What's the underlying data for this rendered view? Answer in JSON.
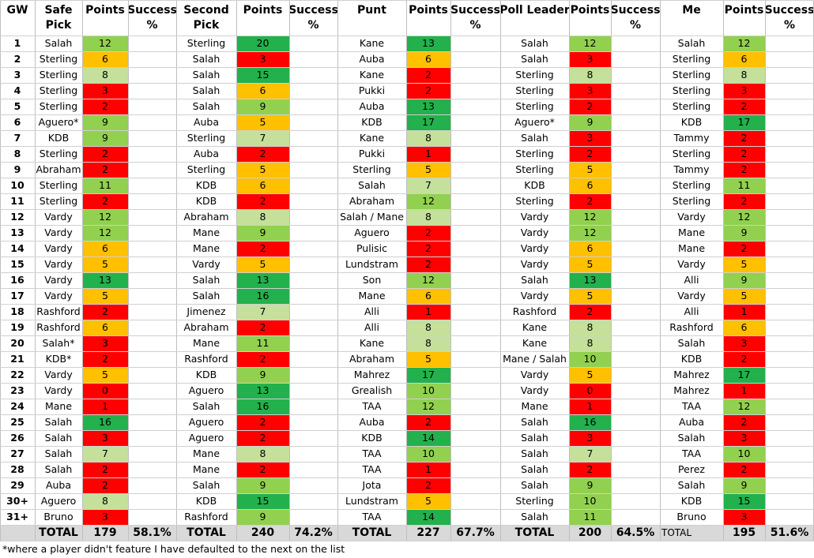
{
  "header": {
    "gw": "GW",
    "safe_pick": [
      "Safe",
      "Pick"
    ],
    "points": "Points",
    "success": [
      "Success",
      "%"
    ],
    "second_pick": [
      "Second",
      "Pick"
    ],
    "punt": "Punt",
    "poll_leader": "Poll Leader",
    "me": "Me"
  },
  "colors": {
    "green": "#22b14c",
    "light_green": "#92d050",
    "pale_green": "#c4e09a",
    "orange": "#ffc000",
    "red": "#ff0000",
    "total_bg": "#d9d9d9"
  },
  "rows": [
    {
      "gw": "1",
      "safe": "Salah",
      "safe_pts": "12",
      "second": "Sterling",
      "second_pts": "20",
      "punt": "Kane",
      "punt_pts": "13",
      "poll": "Salah",
      "poll_pts": "12",
      "me": "Salah",
      "me_pts": "12"
    },
    {
      "gw": "2",
      "safe": "Sterling",
      "safe_pts": "6",
      "second": "Salah",
      "second_pts": "3",
      "punt": "Auba",
      "punt_pts": "6",
      "poll": "Salah",
      "poll_pts": "3",
      "me": "Sterling",
      "me_pts": "6"
    },
    {
      "gw": "3",
      "safe": "Sterling",
      "safe_pts": "8",
      "second": "Salah",
      "second_pts": "15",
      "punt": "Kane",
      "punt_pts": "2",
      "poll": "Sterling",
      "poll_pts": "8",
      "me": "Sterling",
      "me_pts": "8"
    },
    {
      "gw": "4",
      "safe": "Sterling",
      "safe_pts": "3",
      "second": "Salah",
      "second_pts": "6",
      "punt": "Pukki",
      "punt_pts": "2",
      "poll": "Sterling",
      "poll_pts": "3",
      "me": "Sterling",
      "me_pts": "3"
    },
    {
      "gw": "5",
      "safe": "Sterling",
      "safe_pts": "2",
      "second": "Salah",
      "second_pts": "9",
      "punt": "Auba",
      "punt_pts": "13",
      "poll": "Sterling",
      "poll_pts": "2",
      "me": "Sterling",
      "me_pts": "2"
    },
    {
      "gw": "6",
      "safe": "Aguero*",
      "safe_pts": "9",
      "second": "Auba",
      "second_pts": "5",
      "punt": "KDB",
      "punt_pts": "17",
      "poll": "Aguero*",
      "poll_pts": "9",
      "me": "KDB",
      "me_pts": "17"
    },
    {
      "gw": "7",
      "safe": "KDB",
      "safe_pts": "9",
      "second": "Sterling",
      "second_pts": "7",
      "punt": "Kane",
      "punt_pts": "8",
      "poll": "Salah",
      "poll_pts": "3",
      "me": "Tammy",
      "me_pts": "2"
    },
    {
      "gw": "8",
      "safe": "Sterling",
      "safe_pts": "2",
      "second": "Auba",
      "second_pts": "2",
      "punt": "Pukki",
      "punt_pts": "1",
      "poll": "Sterling",
      "poll_pts": "2",
      "me": "Sterling",
      "me_pts": "2"
    },
    {
      "gw": "9",
      "safe": "Abraham",
      "safe_pts": "2",
      "second": "Sterling",
      "second_pts": "5",
      "punt": "Sterling",
      "punt_pts": "5",
      "poll": "Sterling",
      "poll_pts": "5",
      "me": "Tammy",
      "me_pts": "2"
    },
    {
      "gw": "10",
      "safe": "Sterling",
      "safe_pts": "11",
      "second": "KDB",
      "second_pts": "6",
      "punt": "Salah",
      "punt_pts": "7",
      "poll": "KDB",
      "poll_pts": "6",
      "me": "Sterling",
      "me_pts": "11"
    },
    {
      "gw": "11",
      "safe": "Sterling",
      "safe_pts": "2",
      "second": "KDB",
      "second_pts": "2",
      "punt": "Abraham",
      "punt_pts": "12",
      "poll": "Sterling",
      "poll_pts": "2",
      "me": "Sterling",
      "me_pts": "2"
    },
    {
      "gw": "12",
      "safe": "Vardy",
      "safe_pts": "12",
      "second": "Abraham",
      "second_pts": "8",
      "punt": "Salah / Mane",
      "punt_pts": "8",
      "poll": "Vardy",
      "poll_pts": "12",
      "me": "Vardy",
      "me_pts": "12"
    },
    {
      "gw": "13",
      "safe": "Vardy",
      "safe_pts": "12",
      "second": "Mane",
      "second_pts": "9",
      "punt": "Aguero",
      "punt_pts": "2",
      "poll": "Vardy",
      "poll_pts": "12",
      "me": "Mane",
      "me_pts": "9"
    },
    {
      "gw": "14",
      "safe": "Vardy",
      "safe_pts": "6",
      "second": "Mane",
      "second_pts": "2",
      "punt": "Pulisic",
      "punt_pts": "2",
      "poll": "Vardy",
      "poll_pts": "6",
      "me": "Mane",
      "me_pts": "2"
    },
    {
      "gw": "15",
      "safe": "Vardy",
      "safe_pts": "5",
      "second": "Vardy",
      "second_pts": "5",
      "punt": "Lundstram",
      "punt_pts": "2",
      "poll": "Vardy",
      "poll_pts": "5",
      "me": "Vardy",
      "me_pts": "5"
    },
    {
      "gw": "16",
      "safe": "Vardy",
      "safe_pts": "13",
      "second": "Salah",
      "second_pts": "13",
      "punt": "Son",
      "punt_pts": "12",
      "poll": "Salah",
      "poll_pts": "13",
      "me": "Alli",
      "me_pts": "9"
    },
    {
      "gw": "17",
      "safe": "Vardy",
      "safe_pts": "5",
      "second": "Salah",
      "second_pts": "16",
      "punt": "Mane",
      "punt_pts": "6",
      "poll": "Vardy",
      "poll_pts": "5",
      "me": "Vardy",
      "me_pts": "5"
    },
    {
      "gw": "18",
      "safe": "Rashford",
      "safe_pts": "2",
      "second": "Jimenez",
      "second_pts": "7",
      "punt": "Alli",
      "punt_pts": "1",
      "poll": "Rashford",
      "poll_pts": "2",
      "me": "Alli",
      "me_pts": "1"
    },
    {
      "gw": "19",
      "safe": "Rashford",
      "safe_pts": "6",
      "second": "Abraham",
      "second_pts": "2",
      "punt": "Alli",
      "punt_pts": "8",
      "poll": "Kane",
      "poll_pts": "8",
      "me": "Rashford",
      "me_pts": "6"
    },
    {
      "gw": "20",
      "safe": "Salah*",
      "safe_pts": "3",
      "second": "Mane",
      "second_pts": "11",
      "punt": "Kane",
      "punt_pts": "8",
      "poll": "Kane",
      "poll_pts": "8",
      "me": "Salah",
      "me_pts": "3"
    },
    {
      "gw": "21",
      "safe": "KDB*",
      "safe_pts": "2",
      "second": "Rashford",
      "second_pts": "2",
      "punt": "Abraham",
      "punt_pts": "5",
      "poll": "Mane / Salah",
      "poll_pts": "10",
      "me": "KDB",
      "me_pts": "2"
    },
    {
      "gw": "22",
      "safe": "Vardy",
      "safe_pts": "5",
      "second": "KDB",
      "second_pts": "9",
      "punt": "Mahrez",
      "punt_pts": "17",
      "poll": "Vardy",
      "poll_pts": "5",
      "me": "Mahrez",
      "me_pts": "17"
    },
    {
      "gw": "23",
      "safe": "Vardy",
      "safe_pts": "0",
      "second": "Aguero",
      "second_pts": "13",
      "punt": "Grealish",
      "punt_pts": "10",
      "poll": "Vardy",
      "poll_pts": "0",
      "me": "Mahrez",
      "me_pts": "1"
    },
    {
      "gw": "24",
      "safe": "Mane",
      "safe_pts": "1",
      "second": "Salah",
      "second_pts": "16",
      "punt": "TAA",
      "punt_pts": "12",
      "poll": "Mane",
      "poll_pts": "1",
      "me": "TAA",
      "me_pts": "12"
    },
    {
      "gw": "25",
      "safe": "Salah",
      "safe_pts": "16",
      "second": "Aguero",
      "second_pts": "2",
      "punt": "Auba",
      "punt_pts": "2",
      "poll": "Salah",
      "poll_pts": "16",
      "me": "Auba",
      "me_pts": "2"
    },
    {
      "gw": "26",
      "safe": "Salah",
      "safe_pts": "3",
      "second": "Aguero",
      "second_pts": "2",
      "punt": "KDB",
      "punt_pts": "14",
      "poll": "Salah",
      "poll_pts": "3",
      "me": "Salah",
      "me_pts": "3"
    },
    {
      "gw": "27",
      "safe": "Salah",
      "safe_pts": "7",
      "second": "Mane",
      "second_pts": "8",
      "punt": "TAA",
      "punt_pts": "10",
      "poll": "Salah",
      "poll_pts": "7",
      "me": "TAA",
      "me_pts": "10"
    },
    {
      "gw": "28",
      "safe": "Salah",
      "safe_pts": "2",
      "second": "Mane",
      "second_pts": "2",
      "punt": "TAA",
      "punt_pts": "1",
      "poll": "Salah",
      "poll_pts": "2",
      "me": "Perez",
      "me_pts": "2"
    },
    {
      "gw": "29",
      "safe": "Auba",
      "safe_pts": "2",
      "second": "Salah",
      "second_pts": "9",
      "punt": "Jota",
      "punt_pts": "2",
      "poll": "Salah",
      "poll_pts": "9",
      "me": "Salah",
      "me_pts": "9"
    },
    {
      "gw": "30+",
      "safe": "Aguero",
      "safe_pts": "8",
      "second": "KDB",
      "second_pts": "15",
      "punt": "Lundstram",
      "punt_pts": "5",
      "poll": "Sterling",
      "poll_pts": "10",
      "me": "KDB",
      "me_pts": "15"
    },
    {
      "gw": "31+",
      "safe": "Bruno",
      "safe_pts": "3",
      "second": "Rashford",
      "second_pts": "9",
      "punt": "TAA",
      "punt_pts": "14",
      "poll": "Salah",
      "poll_pts": "11",
      "me": "Bruno",
      "me_pts": "3"
    }
  ],
  "totals": {
    "label": "TOTAL",
    "me_label": "TOTAL",
    "safe_pts": "179",
    "safe_pct": "58.1%",
    "second_pts": "240",
    "second_pct": "74.2%",
    "punt_pts": "227",
    "punt_pct": "67.7%",
    "poll_pts": "200",
    "poll_pct": "64.5%",
    "me_pts": "195",
    "me_pct": "51.6%"
  },
  "footnote": "*where a player didn't feature I have defaulted to the next on the list"
}
